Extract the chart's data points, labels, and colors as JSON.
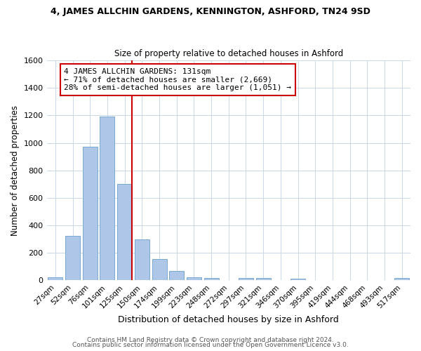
{
  "title": "4, JAMES ALLCHIN GARDENS, KENNINGTON, ASHFORD, TN24 9SD",
  "subtitle": "Size of property relative to detached houses in Ashford",
  "xlabel": "Distribution of detached houses by size in Ashford",
  "ylabel": "Number of detached properties",
  "bar_color": "#aec6e8",
  "bar_edgecolor": "#7aaad0",
  "categories": [
    "27sqm",
    "52sqm",
    "76sqm",
    "101sqm",
    "125sqm",
    "150sqm",
    "174sqm",
    "199sqm",
    "223sqm",
    "248sqm",
    "272sqm",
    "297sqm",
    "321sqm",
    "346sqm",
    "370sqm",
    "395sqm",
    "419sqm",
    "444sqm",
    "468sqm",
    "493sqm",
    "517sqm"
  ],
  "values": [
    25,
    325,
    970,
    1190,
    700,
    300,
    155,
    70,
    25,
    20,
    0,
    20,
    20,
    0,
    10,
    0,
    0,
    0,
    0,
    0,
    20
  ],
  "ylim": [
    0,
    1600
  ],
  "yticks": [
    0,
    200,
    400,
    600,
    800,
    1000,
    1200,
    1400,
    1600
  ],
  "vline_x": 4.4,
  "vline_color": "#cc0000",
  "annotation_line1": "4 JAMES ALLCHIN GARDENS: 131sqm",
  "annotation_line2": "← 71% of detached houses are smaller (2,669)",
  "annotation_line3": "28% of semi-detached houses are larger (1,051) →",
  "annotation_box_color": "#ffffff",
  "annotation_box_edgecolor": "#cc0000",
  "footer1": "Contains HM Land Registry data © Crown copyright and database right 2024.",
  "footer2": "Contains public sector information licensed under the Open Government Licence v3.0.",
  "background_color": "#ffffff",
  "grid_color": "#c8d8e8",
  "title_fontsize": 9,
  "subtitle_fontsize": 8.5
}
